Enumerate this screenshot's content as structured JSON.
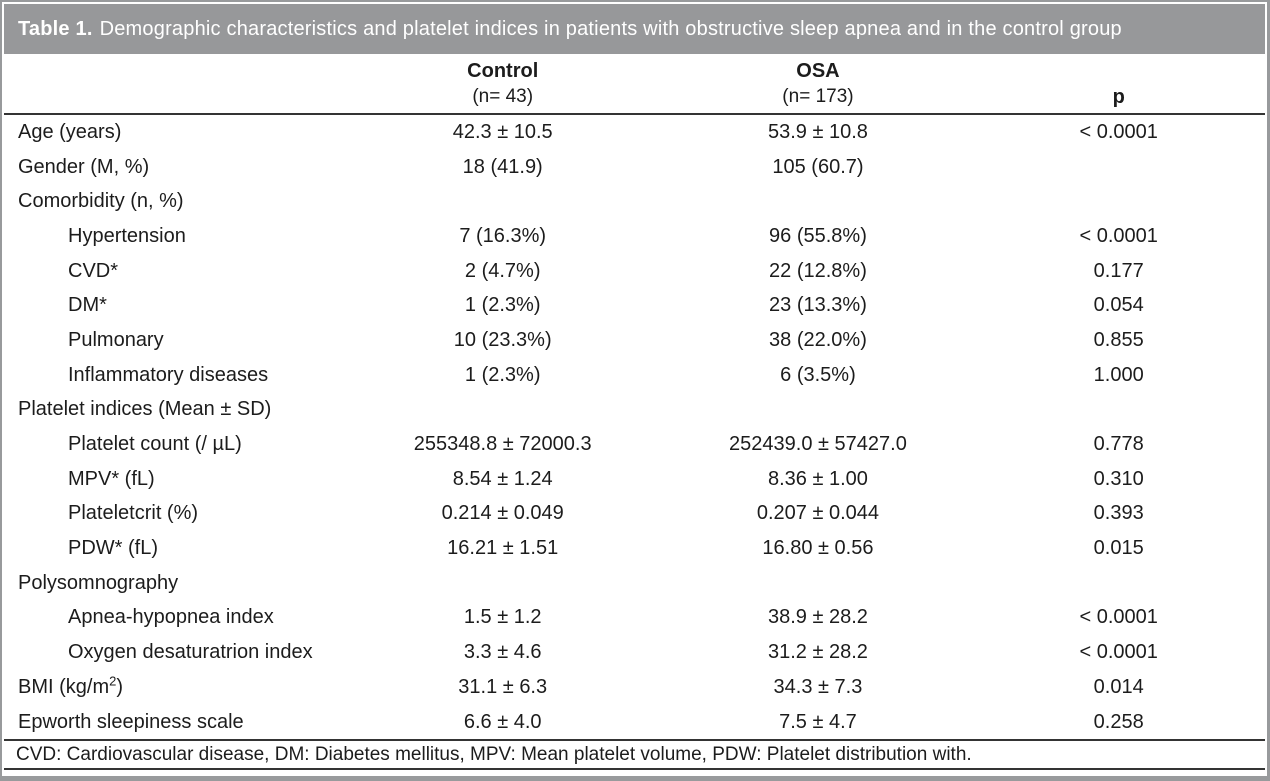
{
  "table": {
    "title_prefix": "Table 1.",
    "title_text": "Demographic characteristics and platelet indices in patients with obstructive sleep apnea and in the control group",
    "columns": {
      "label_header": "",
      "control_title": "Control",
      "control_sub": "(n= 43)",
      "osa_title": "OSA",
      "osa_sub": "(n= 173)",
      "p_title": "p"
    },
    "rows": [
      {
        "label": "Age (years)",
        "indent": false,
        "control": "42.3 ± 10.5",
        "osa": "53.9 ± 10.8",
        "p": "< 0.0001"
      },
      {
        "label": "Gender (M, %)",
        "indent": false,
        "control": "18 (41.9)",
        "osa": "105 (60.7)",
        "p": ""
      },
      {
        "label": "Comorbidity (n, %)",
        "indent": false,
        "control": "",
        "osa": "",
        "p": ""
      },
      {
        "label": "Hypertension",
        "indent": true,
        "control": "7 (16.3%)",
        "osa": "96 (55.8%)",
        "p": "< 0.0001"
      },
      {
        "label": "CVD*",
        "indent": true,
        "control": "2 (4.7%)",
        "osa": "22 (12.8%)",
        "p": "0.177"
      },
      {
        "label": "DM*",
        "indent": true,
        "control": "1 (2.3%)",
        "osa": "23 (13.3%)",
        "p": "0.054"
      },
      {
        "label": "Pulmonary",
        "indent": true,
        "control": "10 (23.3%)",
        "osa": "38 (22.0%)",
        "p": "0.855"
      },
      {
        "label": "Inflammatory diseases",
        "indent": true,
        "control": "1 (2.3%)",
        "osa": "6 (3.5%)",
        "p": "1.000"
      },
      {
        "label": "Platelet indices (Mean ± SD)",
        "indent": false,
        "control": "",
        "osa": "",
        "p": ""
      },
      {
        "label": "Platelet count (/ µL)",
        "indent": true,
        "control": "255348.8 ± 72000.3",
        "osa": "252439.0 ± 57427.0",
        "p": "0.778"
      },
      {
        "label": "MPV* (fL)",
        "indent": true,
        "control": "8.54 ± 1.24",
        "osa": "8.36 ± 1.00",
        "p": "0.310"
      },
      {
        "label": "Plateletcrit (%)",
        "indent": true,
        "control": "0.214 ± 0.049",
        "osa": "0.207 ± 0.044",
        "p": "0.393"
      },
      {
        "label": "PDW* (fL)",
        "indent": true,
        "control": "16.21 ± 1.51",
        "osa": "16.80 ± 0.56",
        "p": "0.015"
      },
      {
        "label": "Polysomnography",
        "indent": false,
        "control": "",
        "osa": "",
        "p": ""
      },
      {
        "label": "Apnea-hypopnea index",
        "indent": true,
        "control": "1.5 ± 1.2",
        "osa": "38.9 ± 28.2",
        "p": "< 0.0001"
      },
      {
        "label": "Oxygen desaturatrion index",
        "indent": true,
        "control": "3.3 ± 4.6",
        "osa": "31.2 ± 28.2",
        "p": "< 0.0001"
      },
      {
        "label": "BMI (kg/m^{2})",
        "indent": false,
        "control": "31.1 ± 6.3",
        "osa": "34.3 ± 7.3",
        "p": "0.014"
      },
      {
        "label": "Epworth sleepiness scale",
        "indent": false,
        "control": "6.6 ± 4.0",
        "osa": "7.5 ± 4.7",
        "p": "0.258"
      }
    ],
    "footnote": "CVD: Cardiovascular disease, DM: Diabetes mellitus, MPV: Mean platelet volume, PDW: Platelet distribution with."
  },
  "colors": {
    "title_bar": "#97989a",
    "frame": "#989a9c",
    "rule": "#343434",
    "text": "#1c1c1c",
    "title_text": "#ffffff"
  }
}
